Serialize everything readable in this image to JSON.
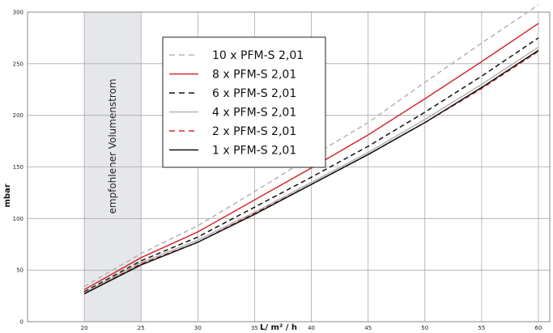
{
  "chart_data": {
    "type": "line",
    "xlabel": "L/ m² / h",
    "ylabel": "mbar",
    "xlim": [
      15,
      61
    ],
    "ylim": [
      0,
      300
    ],
    "x_ticks": [
      20,
      25,
      30,
      35,
      40,
      45,
      50,
      55,
      60
    ],
    "y_ticks": [
      0,
      50,
      100,
      150,
      200,
      250,
      300
    ],
    "grid": true,
    "legend_position": "top-center",
    "band": {
      "x_from": 20,
      "x_to": 25,
      "label": "empfohlener Volumenstrom",
      "color": "#e6e7ea"
    },
    "x": [
      20,
      25,
      30,
      35,
      40,
      45,
      50,
      55,
      60
    ],
    "series": [
      {
        "name": "10 x PFM-S 2,01",
        "color": "#b3b3b3",
        "dash": "dashed",
        "values": [
          34,
          66,
          93,
          126,
          160,
          193,
          232,
          270,
          307
        ]
      },
      {
        "name": "8 x PFM-S 2,01",
        "color": "#d42a2a",
        "dash": "solid",
        "values": [
          31,
          62,
          87,
          118,
          149,
          181,
          216,
          252,
          289
        ]
      },
      {
        "name": "6 x PFM-S 2,01",
        "color": "#111111",
        "dash": "dashed",
        "values": [
          29,
          59,
          82,
          111,
          140,
          170,
          203,
          238,
          275
        ]
      },
      {
        "name": "4 x PFM-S 2,01",
        "color": "#b3b3b3",
        "dash": "solid",
        "values": [
          28,
          57,
          79,
          106,
          135,
          164,
          196,
          230,
          266
        ]
      },
      {
        "name": "2 x PFM-S 2,01",
        "color": "#d42a2a",
        "dash": "dashed",
        "values": [
          27,
          56,
          77,
          105,
          133,
          162,
          193,
          226,
          262
        ]
      },
      {
        "name": "1 x PFM-S 2,01",
        "color": "#111111",
        "dash": "solid",
        "values": [
          27,
          55,
          77,
          104,
          133,
          162,
          193,
          227,
          263
        ]
      }
    ]
  }
}
